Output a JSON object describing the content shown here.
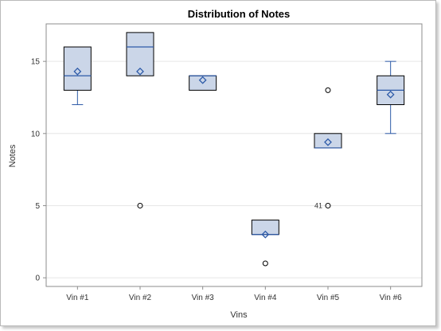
{
  "chart_data": {
    "type": "box",
    "title": "Distribution of Notes",
    "xlabel": "Vins",
    "ylabel": "Notes",
    "ylim": [
      -0.6,
      17.6
    ],
    "yticks": [
      0,
      5,
      10,
      15
    ],
    "grid": "horizontal",
    "categories": [
      "Vin #1",
      "Vin #2",
      "Vin #3",
      "Vin #4",
      "Vin #5",
      "Vin #6"
    ],
    "boxes": [
      {
        "q1": 13,
        "median": 14,
        "q3": 16,
        "mean": 14.3,
        "whisker_low": 12,
        "whisker_high": 16,
        "outliers": []
      },
      {
        "q1": 14,
        "median": 16,
        "q3": 17,
        "mean": 14.3,
        "whisker_low": 14,
        "whisker_high": 17,
        "outliers": [
          5
        ]
      },
      {
        "q1": 13,
        "median": 14,
        "q3": 14,
        "mean": 13.7,
        "whisker_low": 13,
        "whisker_high": 14,
        "outliers": []
      },
      {
        "q1": 3,
        "median": 3,
        "q3": 4,
        "mean": 3,
        "whisker_low": 3,
        "whisker_high": 4,
        "outliers": [
          1
        ]
      },
      {
        "q1": 9,
        "median": 9,
        "q3": 10,
        "mean": 9.4,
        "whisker_low": 9,
        "whisker_high": 10,
        "outliers": [
          13,
          5
        ],
        "outlier_labels": [
          null,
          "41"
        ]
      },
      {
        "q1": 12,
        "median": 13,
        "q3": 14,
        "mean": 12.7,
        "whisker_low": 10,
        "whisker_high": 15,
        "outliers": []
      }
    ],
    "colors": {
      "box_fill": "#cbd6e8",
      "box_stroke": "#000000",
      "median": "#2d5aa8",
      "whisker": "#2d5aa8",
      "mean_marker": "#2d5aa8",
      "outlier": "#000000",
      "grid": "#e6e6e6",
      "axis": "#8c8c8c"
    }
  }
}
